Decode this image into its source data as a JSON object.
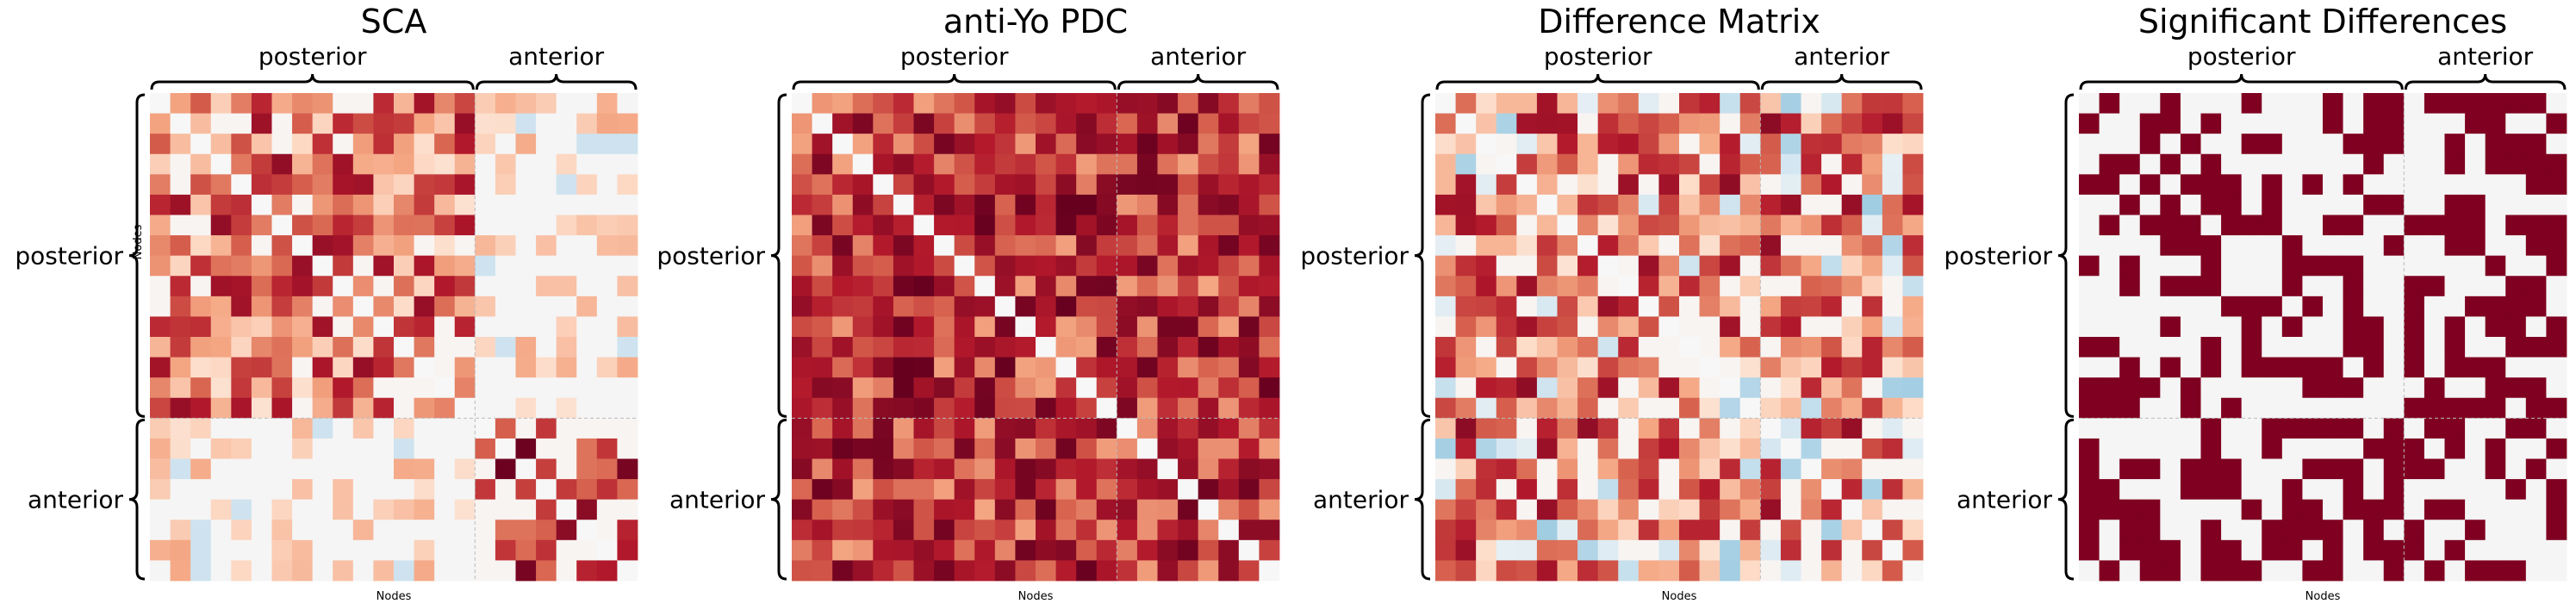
{
  "colors": {
    "background": "#ffffff",
    "empty_cell": "#f5f5f5",
    "diverging_positive": [
      "#f7f7f7",
      "#fddbc7",
      "#f4a582",
      "#d6604d",
      "#b2182b",
      "#67001f"
    ],
    "diverging_negative": [
      "#f7f7f7",
      "#d1e5f0",
      "#92c5de",
      "#4393c3"
    ],
    "significant": "#7f0020"
  },
  "chart_data": [
    {
      "type": "heatmap",
      "title": "SCA",
      "xlabel": "Nodes",
      "ylabel": "Nodes",
      "group_labels": {
        "top": [
          "posterior",
          "anterior"
        ],
        "left": [
          "posterior",
          "anterior"
        ]
      },
      "matrix_size": 24,
      "groups": [
        {
          "name": "posterior",
          "count": 16
        },
        {
          "name": "anterior",
          "count": 8
        }
      ],
      "value_range": [
        -1,
        1
      ],
      "pattern": "sca"
    },
    {
      "type": "heatmap",
      "title": "anti-Yo PDC",
      "xlabel": "Nodes",
      "ylabel": "",
      "group_labels": {
        "top": [
          "posterior",
          "anterior"
        ],
        "left": [
          "posterior",
          "anterior"
        ]
      },
      "matrix_size": 24,
      "groups": [
        {
          "name": "posterior",
          "count": 16
        },
        {
          "name": "anterior",
          "count": 8
        }
      ],
      "value_range": [
        -1,
        1
      ],
      "pattern": "pdc"
    },
    {
      "type": "heatmap",
      "title": "Difference Matrix",
      "xlabel": "Nodes",
      "ylabel": "",
      "group_labels": {
        "top": [
          "posterior",
          "anterior"
        ],
        "left": [
          "posterior",
          "anterior"
        ]
      },
      "matrix_size": 24,
      "groups": [
        {
          "name": "posterior",
          "count": 16
        },
        {
          "name": "anterior",
          "count": 8
        }
      ],
      "value_range": [
        -1,
        1
      ],
      "pattern": "diff"
    },
    {
      "type": "heatmap",
      "title": "Significant Differences",
      "xlabel": "Nodes",
      "ylabel": "",
      "group_labels": {
        "top": [
          "posterior",
          "anterior"
        ],
        "left": [
          "posterior",
          "anterior"
        ]
      },
      "matrix_size": 24,
      "groups": [
        {
          "name": "posterior",
          "count": 16
        },
        {
          "name": "anterior",
          "count": 8
        }
      ],
      "value_range": [
        0,
        1
      ],
      "pattern": "sig"
    }
  ]
}
